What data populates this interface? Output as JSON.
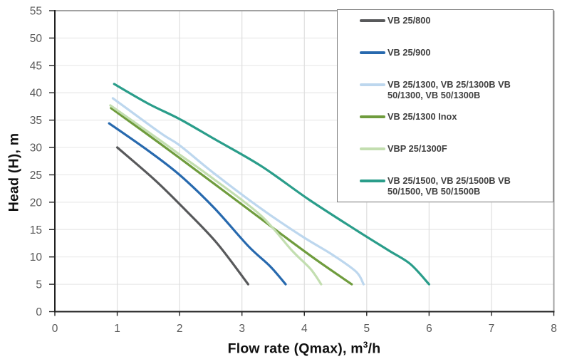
{
  "chart_data": {
    "type": "line",
    "title": "",
    "xlabel": "Flow rate (Qmax), m³/h",
    "ylabel": "Head (H), m",
    "xlim": [
      0,
      8
    ],
    "ylim": [
      0,
      55
    ],
    "xticks": [
      0,
      1,
      2,
      3,
      4,
      5,
      6,
      7,
      8
    ],
    "yticks": [
      0,
      5,
      10,
      15,
      20,
      25,
      30,
      35,
      40,
      45,
      50,
      55
    ],
    "grid": true,
    "legend_position": "top-right",
    "series": [
      {
        "name": "VB 25/800",
        "color": "#58595b",
        "points": [
          [
            1.0,
            30
          ],
          [
            1.6,
            24.1
          ],
          [
            2.1,
            18.5
          ],
          [
            2.6,
            12.5
          ],
          [
            3.1,
            5
          ]
        ]
      },
      {
        "name": "VB 25/900",
        "color": "#2769ae",
        "points": [
          [
            0.87,
            34.4
          ],
          [
            1.5,
            29.4
          ],
          [
            2.0,
            25.0
          ],
          [
            2.55,
            19.0
          ],
          [
            3.1,
            12.0
          ],
          [
            3.45,
            8.3
          ],
          [
            3.7,
            5
          ]
        ]
      },
      {
        "name": "VB 25/1300, VB 25/1300B  VB 50/1300, VB 50/1300B",
        "color": "#bdd7ee",
        "points": [
          [
            0.93,
            39.0
          ],
          [
            1.7,
            32.6
          ],
          [
            2.0,
            30.4
          ],
          [
            2.55,
            25.3
          ],
          [
            3.31,
            18.8
          ],
          [
            3.96,
            13.8
          ],
          [
            4.45,
            10.4
          ],
          [
            4.83,
            7.3
          ],
          [
            4.95,
            5.0
          ]
        ]
      },
      {
        "name": "VB 25/1300 Inox",
        "color": "#6f9c3d",
        "points": [
          [
            0.9,
            37.2
          ],
          [
            1.7,
            30.6
          ],
          [
            2.55,
            23.4
          ],
          [
            3.3,
            17.0
          ],
          [
            3.65,
            14.0
          ],
          [
            4.2,
            9.4
          ],
          [
            4.76,
            5.0
          ]
        ]
      },
      {
        "name": "VBP 25/1300F",
        "color": "#c3deb0",
        "points": [
          [
            0.89,
            37.7
          ],
          [
            1.7,
            31.2
          ],
          [
            2.0,
            28.7
          ],
          [
            2.55,
            24.2
          ],
          [
            3.3,
            17.6
          ],
          [
            3.8,
            11.2
          ],
          [
            4.1,
            7.8
          ],
          [
            4.27,
            5.0
          ]
        ]
      },
      {
        "name": "VB 25/1500, VB 25/1500B VB 50/1500, VB 50/1500B",
        "color": "#2a9d8a",
        "points": [
          [
            0.95,
            41.6
          ],
          [
            1.5,
            38.0
          ],
          [
            2.0,
            35.2
          ],
          [
            2.55,
            31.6
          ],
          [
            3.31,
            26.6
          ],
          [
            4.07,
            20.5
          ],
          [
            4.83,
            14.9
          ],
          [
            5.35,
            11.2
          ],
          [
            5.7,
            8.7
          ],
          [
            6.0,
            5.0
          ]
        ]
      }
    ]
  },
  "axis": {
    "xlabel_parts": {
      "pre": "Flow rate (Qmax), m",
      "sup": "3",
      "post": "/h"
    }
  },
  "legend": {
    "entries": [
      {
        "lines": [
          "VB 25/800"
        ]
      },
      {
        "lines": [
          "VB 25/900"
        ]
      },
      {
        "lines": [
          "VB 25/1300, VB 25/1300B  VB",
          "50/1300, VB 50/1300B"
        ]
      },
      {
        "lines": [
          "VB 25/1300 Inox"
        ]
      },
      {
        "lines": [
          "VBP 25/1300F"
        ]
      },
      {
        "lines": [
          "VB 25/1500, VB 25/1500B VB",
          "50/1500, VB 50/1500B"
        ]
      }
    ]
  },
  "colors": {
    "background": "#ffffff",
    "axis_line": "#212121",
    "outer_border": "#a2a2a2",
    "grid_horizontal": "#e9e9e9",
    "grid_vertical": "#dedede",
    "tick_label": "#595959",
    "title_text": "#111111",
    "legend_text": "#404040",
    "legend_border": "#7f7f7f"
  }
}
